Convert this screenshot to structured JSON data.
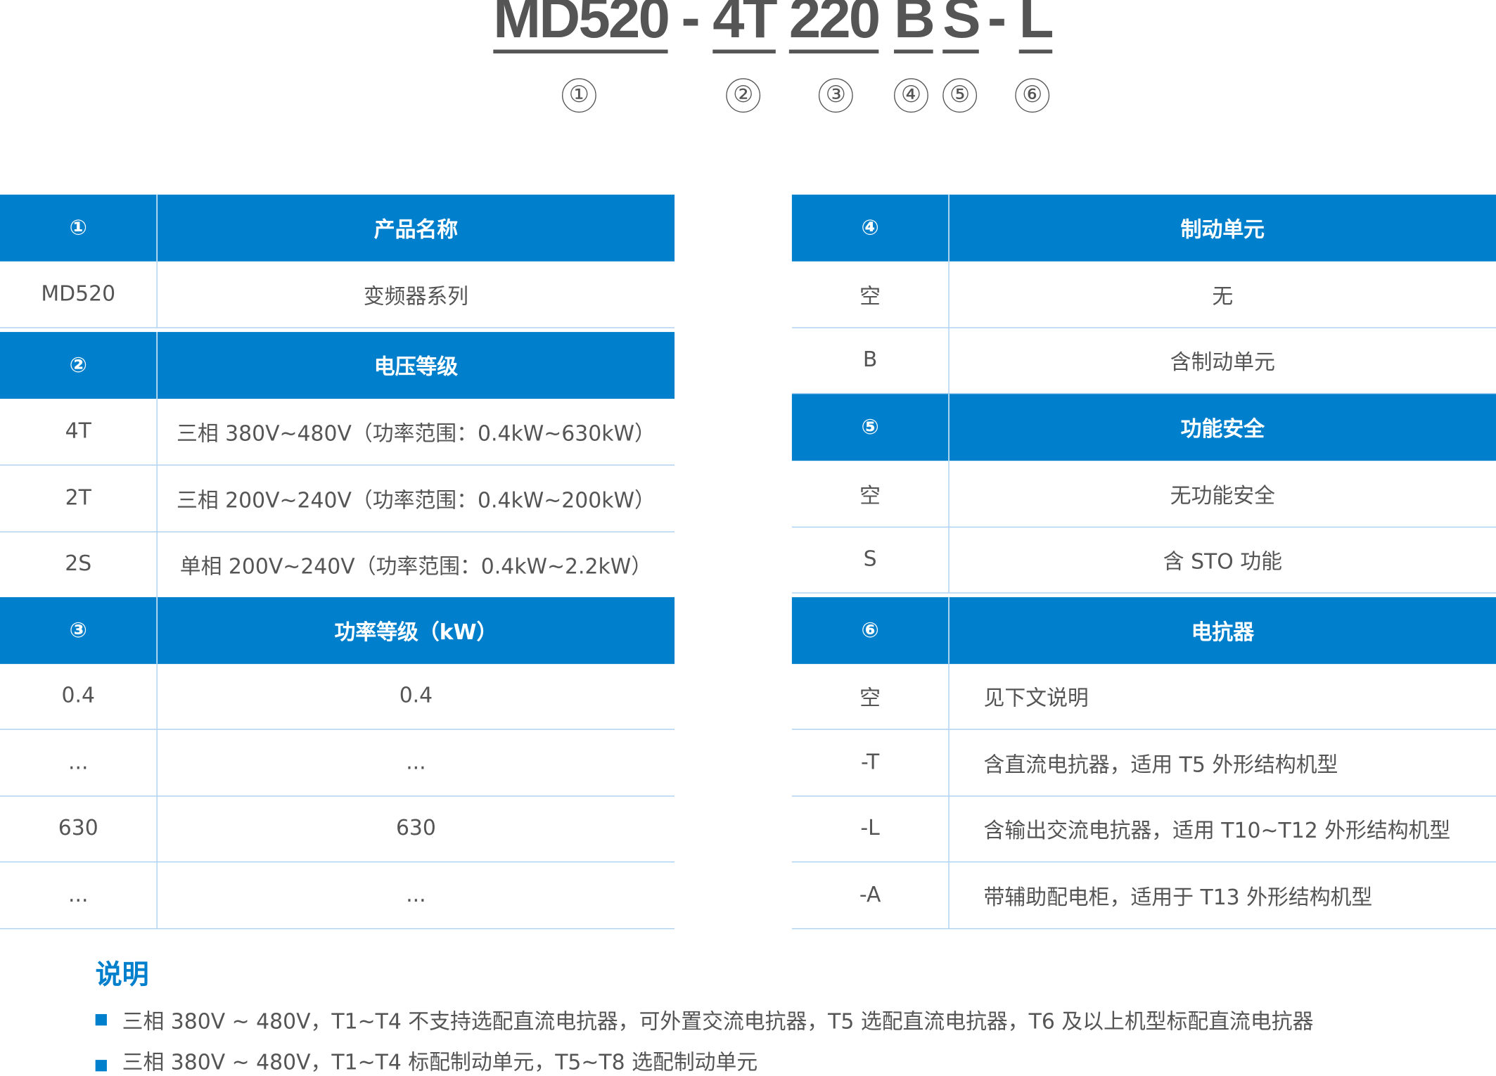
{
  "model_code": {
    "segments": [
      "MD520",
      "-",
      "4T",
      "220",
      "B",
      "S",
      "-",
      "L"
    ],
    "markers": [
      "①",
      "②",
      "③",
      "④",
      "⑤",
      "⑥"
    ]
  },
  "colors": {
    "header_bg": "#0080cc",
    "border": "#a9cff0",
    "text": "#555555"
  },
  "left_table": [
    {
      "type": "header",
      "key": "①",
      "value": "产品名称"
    },
    {
      "type": "row",
      "key": "MD520",
      "value": "变频器系列"
    },
    {
      "type": "header",
      "key": "②",
      "value": "电压等级"
    },
    {
      "type": "row",
      "key": "4T",
      "value": "三相 380V~480V（功率范围：0.4kW~630kW）"
    },
    {
      "type": "row",
      "key": "2T",
      "value": "三相 200V~240V（功率范围：0.4kW~200kW）"
    },
    {
      "type": "row",
      "key": "2S",
      "value": "单相 200V~240V（功率范围：0.4kW~2.2kW）"
    },
    {
      "type": "header",
      "key": "③",
      "value": "功率等级（kW）"
    },
    {
      "type": "row",
      "key": "0.4",
      "value": "0.4"
    },
    {
      "type": "row",
      "key": "...",
      "value": "..."
    },
    {
      "type": "row",
      "key": "630",
      "value": "630"
    },
    {
      "type": "row",
      "key": "...",
      "value": "..."
    }
  ],
  "right_table": [
    {
      "type": "header",
      "key": "④",
      "value": "制动单元"
    },
    {
      "type": "row",
      "key": "空",
      "value": "无"
    },
    {
      "type": "row",
      "key": "B",
      "value": "含制动单元"
    },
    {
      "type": "header",
      "key": "⑤",
      "value": "功能安全"
    },
    {
      "type": "row",
      "key": "空",
      "value": "无功能安全"
    },
    {
      "type": "row",
      "key": "S",
      "value": "含 STO 功能"
    },
    {
      "type": "header",
      "key": "⑥",
      "value": "电抗器"
    },
    {
      "type": "row",
      "key": "空",
      "value": "见下文说明",
      "align": "left"
    },
    {
      "type": "row",
      "key": "-T",
      "value": "含直流电抗器，适用 T5 外形结构机型",
      "align": "left"
    },
    {
      "type": "row",
      "key": "-L",
      "value": "含输出交流电抗器，适用 T10~T12 外形结构机型",
      "align": "left"
    },
    {
      "type": "row",
      "key": "-A",
      "value": "带辅助配电柜，适用于 T13 外形结构机型",
      "align": "left"
    }
  ],
  "notes": {
    "title": "说明",
    "items": [
      "三相 380V ~ 480V，T1~T4 不支持选配直流电抗器，可外置交流电抗器，T5 选配直流电抗器，T6 及以上机型标配直流电抗器",
      "三相 380V ~ 480V，T1~T4 标配制动单元，T5~T8 选配制动单元"
    ]
  }
}
